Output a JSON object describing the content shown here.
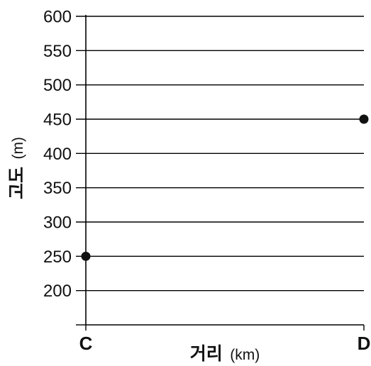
{
  "chart_data": {
    "type": "scatter",
    "categories": [
      "C",
      "D"
    ],
    "points": [
      {
        "x": "C",
        "y": 250
      },
      {
        "x": "D",
        "y": 450
      }
    ],
    "ylim": [
      150,
      600
    ],
    "yticks": [
      200,
      250,
      300,
      350,
      400,
      450,
      500,
      550,
      600
    ],
    "xlabel": "거리",
    "xlabel_unit": "(km)",
    "ylabel": "고도",
    "ylabel_unit": "(m)",
    "grid": "horizontal",
    "colors": {
      "line": "#000000",
      "point": "#111111",
      "text": "#111111"
    }
  }
}
